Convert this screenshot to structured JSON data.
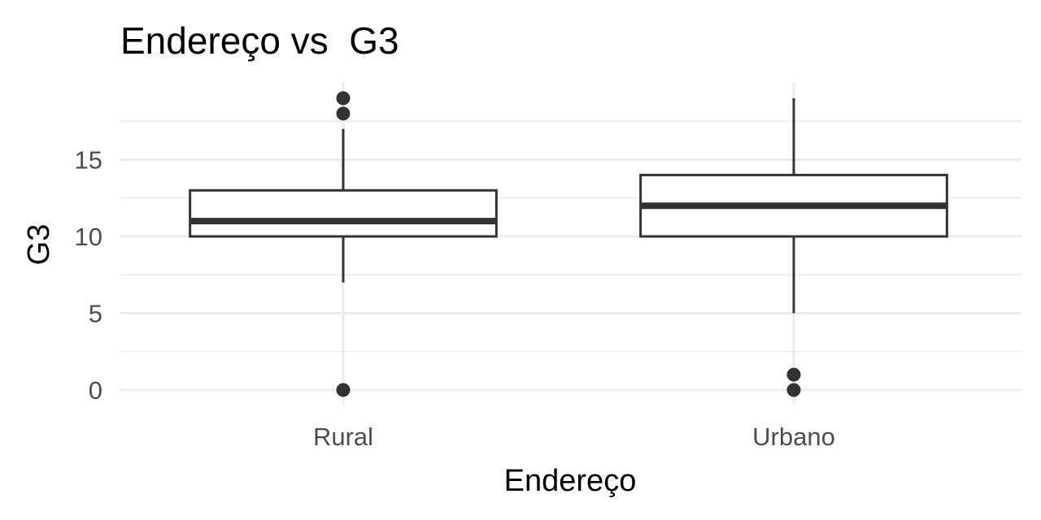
{
  "chart_data": {
    "type": "boxplot",
    "title": "Endereço vs  G3",
    "xlabel": "Endereço",
    "ylabel": "G3",
    "categories": [
      "Rural",
      "Urbano"
    ],
    "boxes": [
      {
        "category": "Rural",
        "min": 7,
        "q1": 10,
        "median": 11,
        "q3": 13,
        "max": 17,
        "outliers": [
          0,
          18,
          19
        ]
      },
      {
        "category": "Urbano",
        "min": 5,
        "q1": 10,
        "median": 12,
        "q3": 14,
        "max": 19,
        "outliers": [
          0,
          1
        ]
      }
    ],
    "y_ticks": [
      0,
      5,
      10,
      15
    ],
    "ylim": [
      -1,
      20
    ],
    "grid": true,
    "legend": "none",
    "colors": {
      "box": "#333333",
      "fill": "#ffffff",
      "grid": "#ebebeb",
      "tick_text": "#4d4d4d"
    }
  }
}
